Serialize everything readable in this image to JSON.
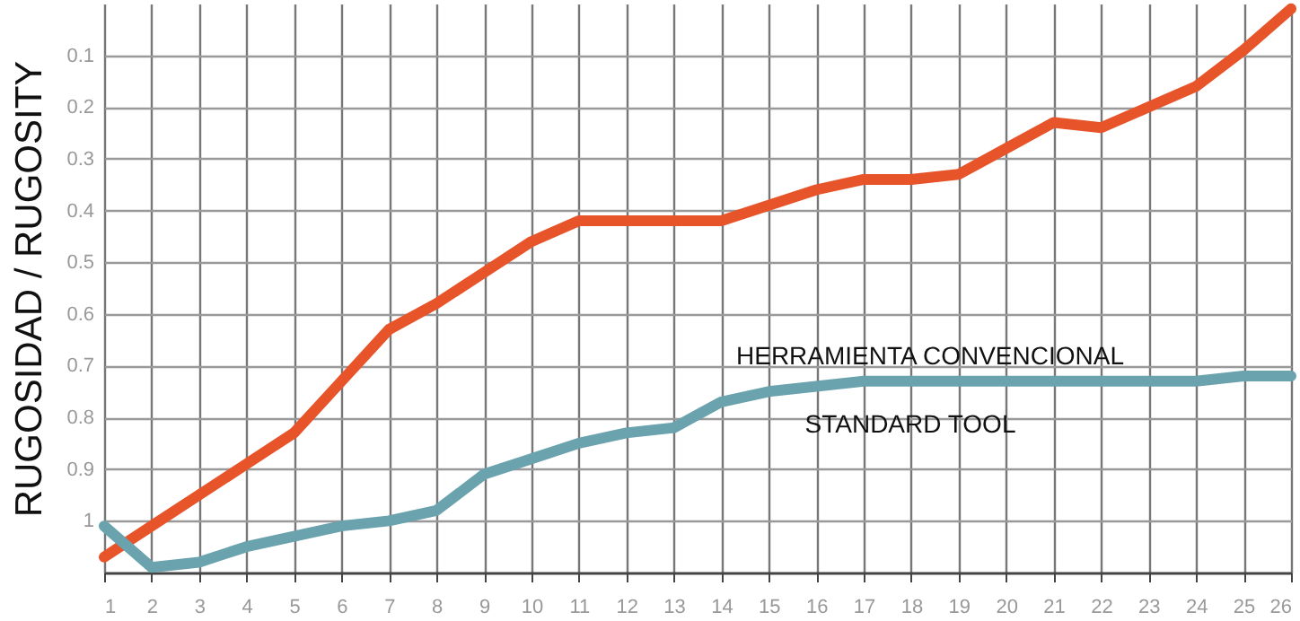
{
  "chart_data": {
    "type": "line",
    "ylabel": "RUGOSIDAD / RUGOSITY",
    "x": [
      1,
      2,
      3,
      4,
      5,
      6,
      7,
      8,
      9,
      10,
      11,
      12,
      13,
      14,
      15,
      16,
      17,
      18,
      19,
      20,
      21,
      22,
      23,
      24,
      25,
      26
    ],
    "xlim": [
      1,
      26
    ],
    "xticks": [
      1,
      2,
      3,
      4,
      5,
      6,
      7,
      8,
      9,
      10,
      11,
      12,
      13,
      14,
      15,
      16,
      17,
      18,
      19,
      20,
      21,
      22,
      23,
      24,
      25,
      26
    ],
    "ylim": [
      1.1,
      0
    ],
    "yticks": [
      {
        "value": 0.1,
        "label": "0.1"
      },
      {
        "value": 0.2,
        "label": "0.2"
      },
      {
        "value": 0.3,
        "label": "0.3"
      },
      {
        "value": 0.4,
        "label": "0.4"
      },
      {
        "value": 0.5,
        "label": "0.5"
      },
      {
        "value": 0.6,
        "label": "0.6"
      },
      {
        "value": 0.7,
        "label": "0.7"
      },
      {
        "value": 0.8,
        "label": "0.8"
      },
      {
        "value": 0.9,
        "label": "0.9"
      },
      {
        "value": 1,
        "label": "1"
      }
    ],
    "grid": true,
    "marker": "none",
    "line_style": "solid",
    "series": [
      {
        "color": "#e8542a",
        "values": [
          1.07,
          1.01,
          0.95,
          0.89,
          0.83,
          0.73,
          0.63,
          0.58,
          0.52,
          0.46,
          0.42,
          0.42,
          0.42,
          0.42,
          0.39,
          0.36,
          0.34,
          0.34,
          0.33,
          0.28,
          0.23,
          0.24,
          0.2,
          0.16,
          0.09,
          0.01
        ]
      },
      {
        "color": "#6aa3ae",
        "values": [
          1.01,
          1.09,
          1.08,
          1.05,
          1.03,
          1.01,
          1.0,
          0.98,
          0.91,
          0.88,
          0.85,
          0.83,
          0.82,
          0.77,
          0.75,
          0.74,
          0.73,
          0.73,
          0.73,
          0.73,
          0.73,
          0.73,
          0.73,
          0.73,
          0.72,
          0.72
        ]
      }
    ],
    "annotations": [
      "HERRAMIENTA CONVENCIONAL",
      "STANDARD TOOL"
    ]
  }
}
